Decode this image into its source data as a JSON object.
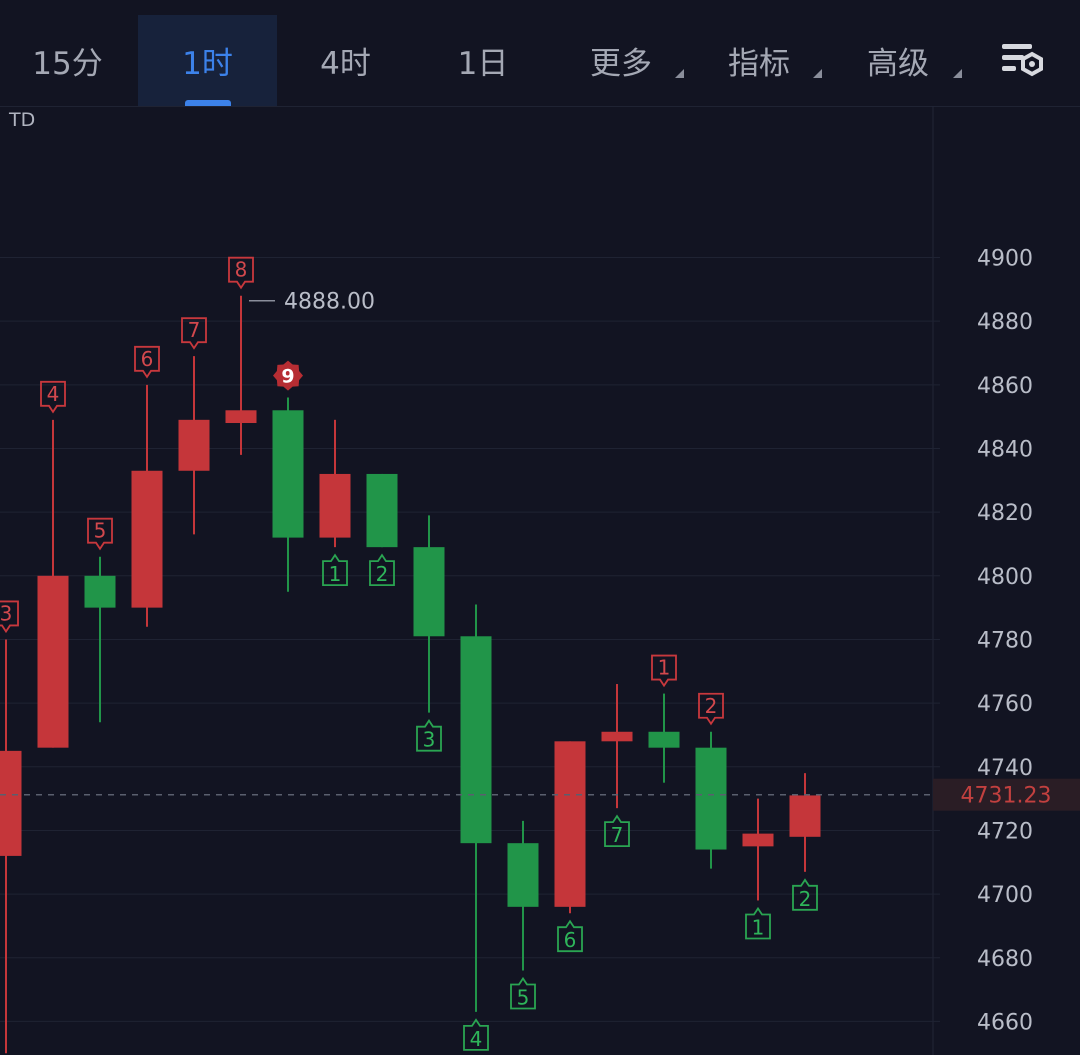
{
  "toolbar": {
    "tabs": [
      {
        "label": "15分",
        "active": false,
        "dropdown": false
      },
      {
        "label": "1时",
        "active": true,
        "dropdown": false
      },
      {
        "label": "4时",
        "active": false,
        "dropdown": false
      },
      {
        "label": "1日",
        "active": false,
        "dropdown": false
      },
      {
        "label": "更多",
        "active": false,
        "dropdown": true
      },
      {
        "label": "指标",
        "active": false,
        "dropdown": true
      },
      {
        "label": "高级",
        "active": false,
        "dropdown": true
      }
    ],
    "settings_icon": "chart-settings-gear-icon"
  },
  "indicator": {
    "label": "TD"
  },
  "colors": {
    "up": "#c5363a",
    "down": "#219549",
    "accent": "#3c82ea",
    "price_line": "#c2403f"
  },
  "chart_data": {
    "type": "candlestick",
    "y_ticks": [
      4900,
      4880,
      4860,
      4840,
      4820,
      4800,
      4780,
      4760,
      4740,
      4720,
      4700,
      4680,
      4660
    ],
    "y_range": [
      4650,
      4916
    ],
    "current_price": 4731.23,
    "current_price_label": "4731.23",
    "high_label": "4888.00",
    "high_value": 4888.0,
    "candles": [
      {
        "open": 4712,
        "close": 4745,
        "high": 4780,
        "low": 4650,
        "dir": "up",
        "td": "3",
        "td_type": "up-count"
      },
      {
        "open": 4746,
        "close": 4800,
        "high": 4849,
        "low": 4746,
        "dir": "up",
        "td": "4",
        "td_type": "up-count"
      },
      {
        "open": 4800,
        "close": 4790,
        "high": 4806,
        "low": 4754,
        "dir": "down",
        "td": "5",
        "td_type": "up-count"
      },
      {
        "open": 4790,
        "close": 4833,
        "high": 4860,
        "low": 4784,
        "dir": "up",
        "td": "6",
        "td_type": "up-count"
      },
      {
        "open": 4833,
        "close": 4849,
        "high": 4869,
        "low": 4813,
        "dir": "up",
        "td": "7",
        "td_type": "up-count"
      },
      {
        "open": 4848,
        "close": 4852,
        "high": 4888,
        "low": 4838,
        "dir": "up",
        "td": "8",
        "td_type": "up-count"
      },
      {
        "open": 4852,
        "close": 4812,
        "high": 4856,
        "low": 4795,
        "dir": "down",
        "td": "9",
        "td_type": "nine"
      },
      {
        "open": 4812,
        "close": 4832,
        "high": 4849,
        "low": 4809,
        "dir": "up",
        "td": "1",
        "td_type": "down-count"
      },
      {
        "open": 4832,
        "close": 4809,
        "high": 4832,
        "low": 4809,
        "dir": "down",
        "td": "2",
        "td_type": "down-count"
      },
      {
        "open": 4809,
        "close": 4781,
        "high": 4819,
        "low": 4757,
        "dir": "down",
        "td": "3",
        "td_type": "down-count"
      },
      {
        "open": 4781,
        "close": 4716,
        "high": 4791,
        "low": 4663,
        "dir": "down",
        "td": "4",
        "td_type": "down-count"
      },
      {
        "open": 4716,
        "close": 4696,
        "high": 4723,
        "low": 4676,
        "dir": "down",
        "td": "5",
        "td_type": "down-count"
      },
      {
        "open": 4696,
        "close": 4748,
        "high": 4748,
        "low": 4694,
        "dir": "up",
        "td": "6",
        "td_type": "down-count"
      },
      {
        "open": 4748,
        "close": 4751,
        "high": 4766,
        "low": 4727,
        "dir": "up",
        "td": "7",
        "td_type": "down-count"
      },
      {
        "open": 4751,
        "close": 4746,
        "high": 4763,
        "low": 4735,
        "dir": "down",
        "td": "1",
        "td_type": "up-count"
      },
      {
        "open": 4746,
        "close": 4714,
        "high": 4751,
        "low": 4708,
        "dir": "down",
        "td": "2",
        "td_type": "up-count"
      },
      {
        "open": 4715,
        "close": 4719,
        "high": 4730,
        "low": 4698,
        "dir": "up",
        "td": "1",
        "td_type": "down-count"
      },
      {
        "open": 4718,
        "close": 4731,
        "high": 4738,
        "low": 4707,
        "dir": "up",
        "td": "2",
        "td_type": "down-count"
      }
    ]
  }
}
